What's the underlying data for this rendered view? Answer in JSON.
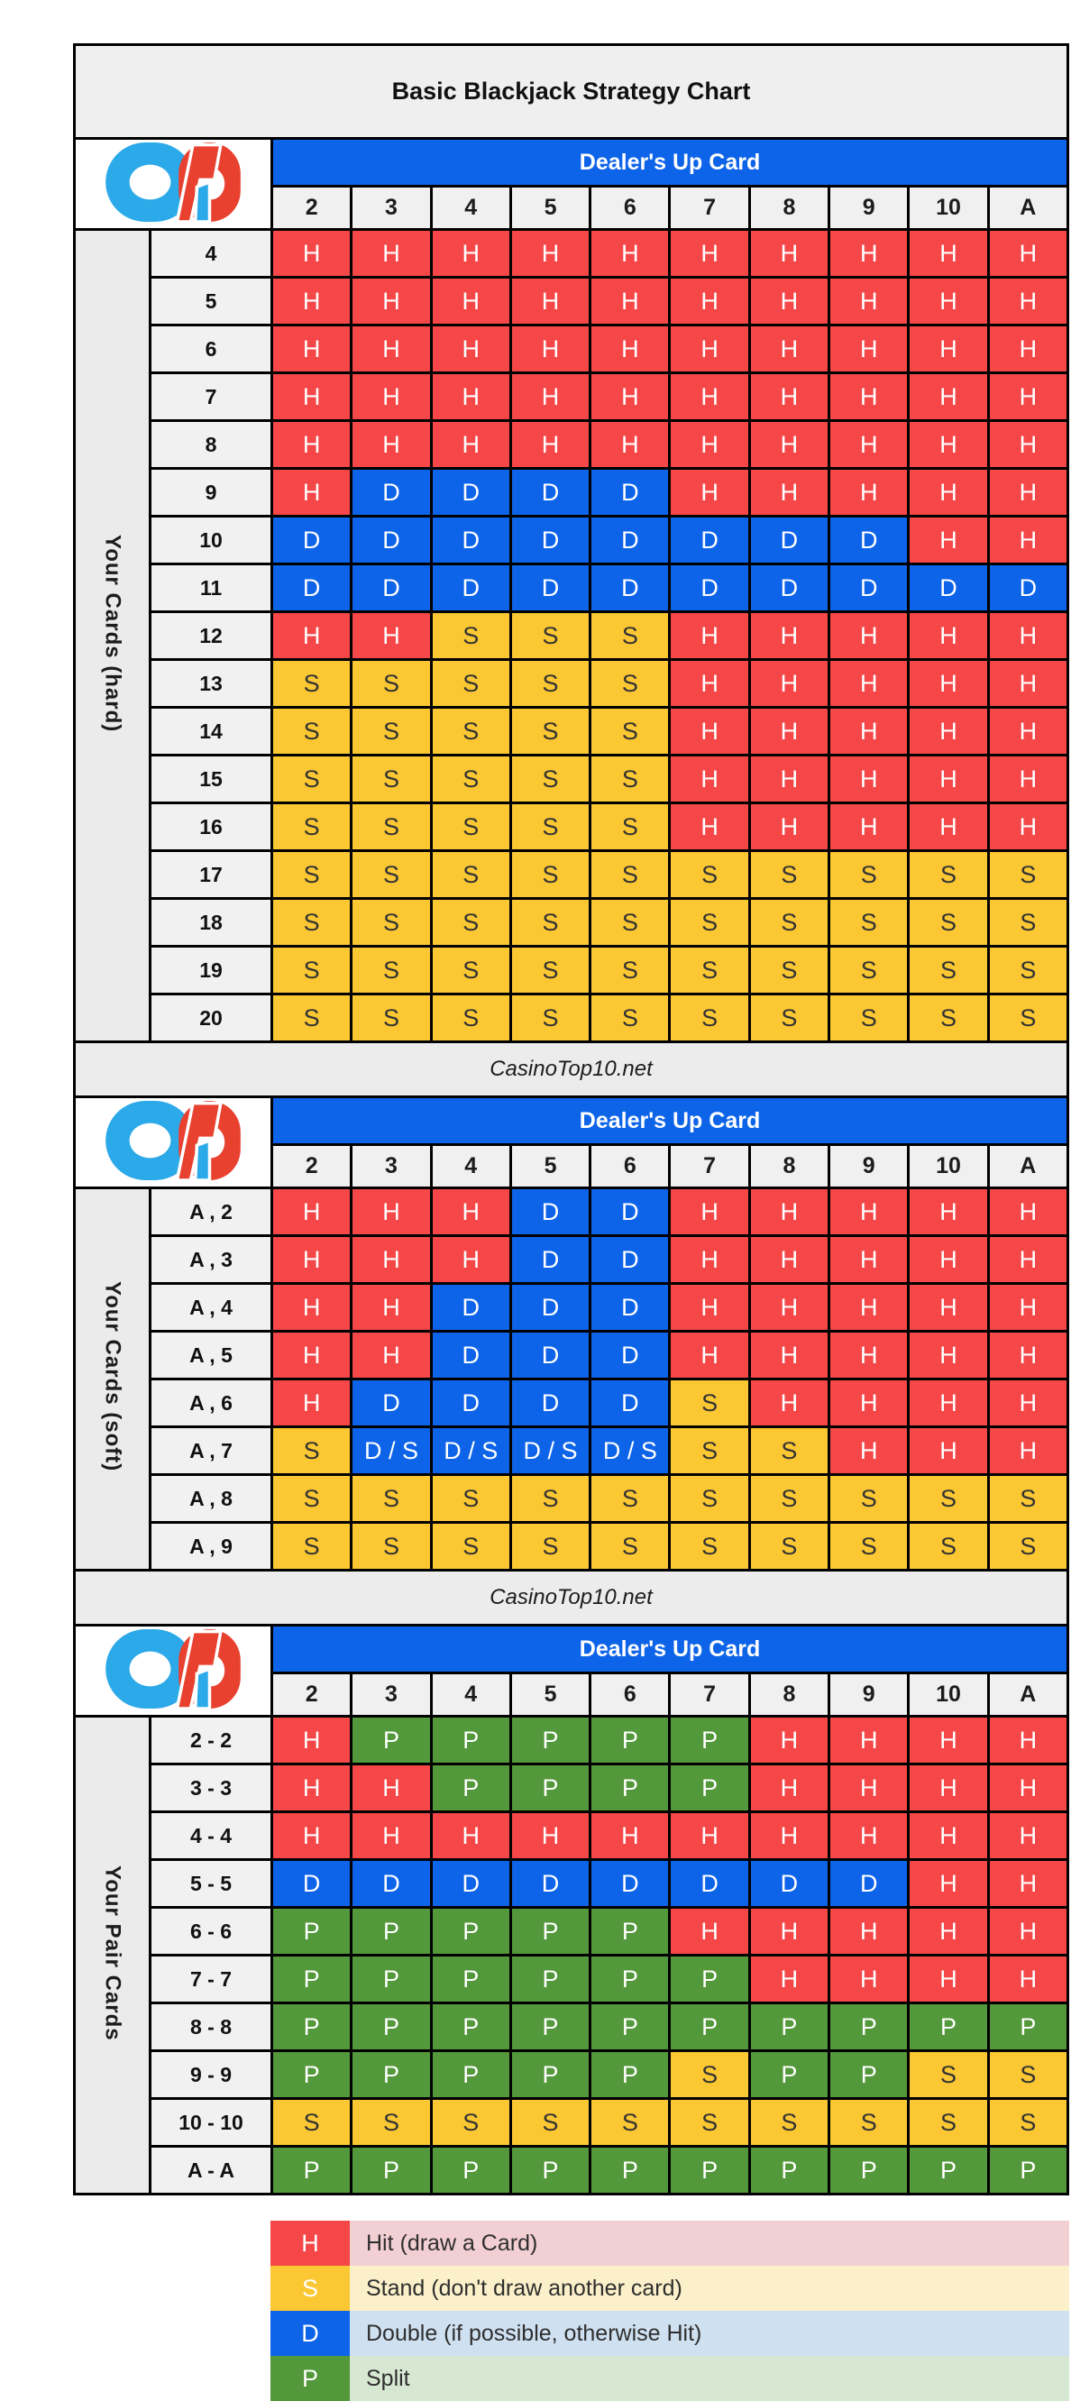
{
  "chart_data": {
    "type": "table",
    "title": "Basic Blackjack Strategy Chart",
    "watermark": "CasinoTop10.net",
    "logo_name": "casinotop10-logo",
    "dealer": {
      "header": "Dealer's Up Card",
      "cards": [
        "2",
        "3",
        "4",
        "5",
        "6",
        "7",
        "8",
        "9",
        "10",
        "A"
      ]
    },
    "action_labels": {
      "H": "H",
      "S": "S",
      "D": "D",
      "P": "P",
      "D/S": "D / S"
    },
    "colors": {
      "border": "#000000",
      "band_blue": "#0e64e8",
      "header_gray": "#f0f0f0",
      "side_gray": "#ebebeb",
      "strip_gray": "#ececec",
      "logo_blue": "#2ba9e8",
      "logo_red": "#e8412f",
      "actions": {
        "H": {
          "bg": "#f54748",
          "fg": "#ffffff"
        },
        "S": {
          "bg": "#fbc732",
          "fg": "#333333"
        },
        "D": {
          "bg": "#0e64e8",
          "fg": "#ffffff"
        },
        "D/S": {
          "bg": "#0e64e8",
          "fg": "#ffffff"
        },
        "P": {
          "bg": "#53983a",
          "fg": "#ffffff"
        }
      }
    },
    "tables": [
      {
        "id": "hard",
        "side_label": "Your Cards (hard)",
        "rows": [
          {
            "label": "4",
            "actions": [
              "H",
              "H",
              "H",
              "H",
              "H",
              "H",
              "H",
              "H",
              "H",
              "H"
            ]
          },
          {
            "label": "5",
            "actions": [
              "H",
              "H",
              "H",
              "H",
              "H",
              "H",
              "H",
              "H",
              "H",
              "H"
            ]
          },
          {
            "label": "6",
            "actions": [
              "H",
              "H",
              "H",
              "H",
              "H",
              "H",
              "H",
              "H",
              "H",
              "H"
            ]
          },
          {
            "label": "7",
            "actions": [
              "H",
              "H",
              "H",
              "H",
              "H",
              "H",
              "H",
              "H",
              "H",
              "H"
            ]
          },
          {
            "label": "8",
            "actions": [
              "H",
              "H",
              "H",
              "H",
              "H",
              "H",
              "H",
              "H",
              "H",
              "H"
            ]
          },
          {
            "label": "9",
            "actions": [
              "H",
              "D",
              "D",
              "D",
              "D",
              "H",
              "H",
              "H",
              "H",
              "H"
            ]
          },
          {
            "label": "10",
            "actions": [
              "D",
              "D",
              "D",
              "D",
              "D",
              "D",
              "D",
              "D",
              "H",
              "H"
            ]
          },
          {
            "label": "11",
            "actions": [
              "D",
              "D",
              "D",
              "D",
              "D",
              "D",
              "D",
              "D",
              "D",
              "D"
            ]
          },
          {
            "label": "12",
            "actions": [
              "H",
              "H",
              "S",
              "S",
              "S",
              "H",
              "H",
              "H",
              "H",
              "H"
            ]
          },
          {
            "label": "13",
            "actions": [
              "S",
              "S",
              "S",
              "S",
              "S",
              "H",
              "H",
              "H",
              "H",
              "H"
            ]
          },
          {
            "label": "14",
            "actions": [
              "S",
              "S",
              "S",
              "S",
              "S",
              "H",
              "H",
              "H",
              "H",
              "H"
            ]
          },
          {
            "label": "15",
            "actions": [
              "S",
              "S",
              "S",
              "S",
              "S",
              "H",
              "H",
              "H",
              "H",
              "H"
            ]
          },
          {
            "label": "16",
            "actions": [
              "S",
              "S",
              "S",
              "S",
              "S",
              "H",
              "H",
              "H",
              "H",
              "H"
            ]
          },
          {
            "label": "17",
            "actions": [
              "S",
              "S",
              "S",
              "S",
              "S",
              "S",
              "S",
              "S",
              "S",
              "S"
            ]
          },
          {
            "label": "18",
            "actions": [
              "S",
              "S",
              "S",
              "S",
              "S",
              "S",
              "S",
              "S",
              "S",
              "S"
            ]
          },
          {
            "label": "19",
            "actions": [
              "S",
              "S",
              "S",
              "S",
              "S",
              "S",
              "S",
              "S",
              "S",
              "S"
            ]
          },
          {
            "label": "20",
            "actions": [
              "S",
              "S",
              "S",
              "S",
              "S",
              "S",
              "S",
              "S",
              "S",
              "S"
            ]
          }
        ]
      },
      {
        "id": "soft",
        "side_label": "Your Cards (soft)",
        "rows": [
          {
            "label": "A , 2",
            "actions": [
              "H",
              "H",
              "H",
              "D",
              "D",
              "H",
              "H",
              "H",
              "H",
              "H"
            ]
          },
          {
            "label": "A , 3",
            "actions": [
              "H",
              "H",
              "H",
              "D",
              "D",
              "H",
              "H",
              "H",
              "H",
              "H"
            ]
          },
          {
            "label": "A , 4",
            "actions": [
              "H",
              "H",
              "D",
              "D",
              "D",
              "H",
              "H",
              "H",
              "H",
              "H"
            ]
          },
          {
            "label": "A , 5",
            "actions": [
              "H",
              "H",
              "D",
              "D",
              "D",
              "H",
              "H",
              "H",
              "H",
              "H"
            ]
          },
          {
            "label": "A , 6",
            "actions": [
              "H",
              "D",
              "D",
              "D",
              "D",
              "S",
              "H",
              "H",
              "H",
              "H"
            ]
          },
          {
            "label": "A , 7",
            "actions": [
              "S",
              "D/S",
              "D/S",
              "D/S",
              "D/S",
              "S",
              "S",
              "H",
              "H",
              "H"
            ]
          },
          {
            "label": "A , 8",
            "actions": [
              "S",
              "S",
              "S",
              "S",
              "S",
              "S",
              "S",
              "S",
              "S",
              "S"
            ]
          },
          {
            "label": "A , 9",
            "actions": [
              "S",
              "S",
              "S",
              "S",
              "S",
              "S",
              "S",
              "S",
              "S",
              "S"
            ]
          }
        ]
      },
      {
        "id": "pairs",
        "side_label": "Your Pair Cards",
        "rows": [
          {
            "label": "2 - 2",
            "actions": [
              "H",
              "P",
              "P",
              "P",
              "P",
              "P",
              "H",
              "H",
              "H",
              "H"
            ]
          },
          {
            "label": "3 - 3",
            "actions": [
              "H",
              "H",
              "P",
              "P",
              "P",
              "P",
              "H",
              "H",
              "H",
              "H"
            ]
          },
          {
            "label": "4 - 4",
            "actions": [
              "H",
              "H",
              "H",
              "H",
              "H",
              "H",
              "H",
              "H",
              "H",
              "H"
            ]
          },
          {
            "label": "5 - 5",
            "actions": [
              "D",
              "D",
              "D",
              "D",
              "D",
              "D",
              "D",
              "D",
              "H",
              "H"
            ]
          },
          {
            "label": "6 - 6",
            "actions": [
              "P",
              "P",
              "P",
              "P",
              "P",
              "H",
              "H",
              "H",
              "H",
              "H"
            ]
          },
          {
            "label": "7 - 7",
            "actions": [
              "P",
              "P",
              "P",
              "P",
              "P",
              "P",
              "H",
              "H",
              "H",
              "H"
            ]
          },
          {
            "label": "8 - 8",
            "actions": [
              "P",
              "P",
              "P",
              "P",
              "P",
              "P",
              "P",
              "P",
              "P",
              "P"
            ]
          },
          {
            "label": "9 - 9",
            "actions": [
              "P",
              "P",
              "P",
              "P",
              "P",
              "S",
              "P",
              "P",
              "S",
              "S"
            ]
          },
          {
            "label": "10 - 10",
            "actions": [
              "S",
              "S",
              "S",
              "S",
              "S",
              "S",
              "S",
              "S",
              "S",
              "S"
            ]
          },
          {
            "label": "A - A",
            "actions": [
              "P",
              "P",
              "P",
              "P",
              "P",
              "P",
              "P",
              "P",
              "P",
              "P"
            ]
          }
        ]
      }
    ],
    "legend": [
      {
        "action": "H",
        "label": "Hit (draw a Card)",
        "row_bg": "#f2cfd3"
      },
      {
        "action": "S",
        "label": "Stand (don't draw another card)",
        "row_bg": "#fcf0ca"
      },
      {
        "action": "D",
        "label": "Double (if possible, otherwise Hit)",
        "row_bg": "#cfe0f1"
      },
      {
        "action": "P",
        "label": "Split",
        "row_bg": "#d6e8d2"
      }
    ]
  }
}
